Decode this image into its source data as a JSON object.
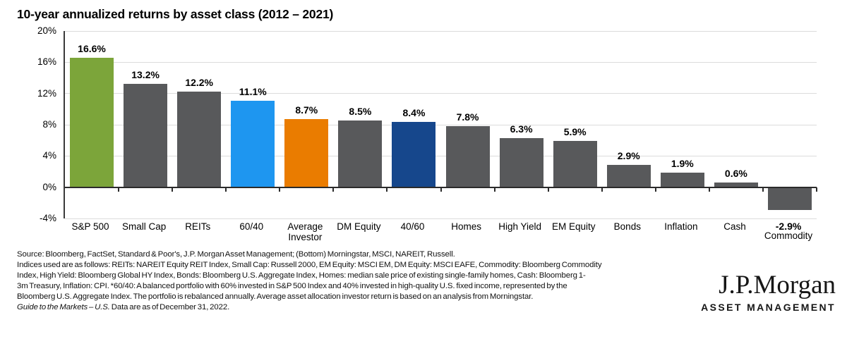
{
  "chart_data": {
    "type": "bar",
    "title": "10-year annualized returns by asset class (2012 – 2021)",
    "categories": [
      "S&P 500",
      "Small Cap",
      "REITs",
      "60/40",
      "Average Investor",
      "DM Equity",
      "40/60",
      "Homes",
      "High Yield",
      "EM Equity",
      "Bonds",
      "Inflation",
      "Cash",
      "Commodity"
    ],
    "values": [
      16.6,
      13.2,
      12.2,
      11.1,
      8.7,
      8.5,
      8.4,
      7.8,
      6.3,
      5.9,
      2.9,
      1.9,
      0.6,
      -2.9
    ],
    "value_labels": [
      "16.6%",
      "13.2%",
      "12.2%",
      "11.1%",
      "8.7%",
      "8.5%",
      "8.4%",
      "7.8%",
      "6.3%",
      "5.9%",
      "2.9%",
      "1.9%",
      "0.6%",
      "-2.9%"
    ],
    "bar_colors": [
      "#7ca53a",
      "#58595b",
      "#58595b",
      "#1e96f0",
      "#ea7c00",
      "#58595b",
      "#16478c",
      "#58595b",
      "#58595b",
      "#58595b",
      "#58595b",
      "#58595b",
      "#58595b",
      "#58595b"
    ],
    "colors": {
      "highlight_green": "#7ca53a",
      "default_gray": "#58595b",
      "bright_blue": "#1e96f0",
      "orange": "#ea7c00",
      "navy": "#16478c",
      "gridline": "#dcdcdc",
      "axis": "#2b2b2b"
    },
    "ylim": [
      -4,
      20
    ],
    "yticks": [
      20,
      16,
      12,
      8,
      4,
      0,
      -4
    ],
    "ytick_labels": [
      "20%",
      "16%",
      "12%",
      "8%",
      "4%",
      "0%",
      "-4%"
    ],
    "xlabel": "",
    "ylabel": "",
    "grid": "horizontal",
    "legend": "none"
  },
  "footnote": {
    "lines": [
      "Source: Bloomberg, FactSet, Standard & Poor's, J.P. Morgan Asset Management; (Bottom) Morningstar, MSCI, NAREIT, Russell.",
      "Indices used are as follows: REITs: NAREIT Equity REIT Index, Small Cap: Russell 2000, EM Equity: MSCI EM, DM Equity: MSCI EAFE, Commodity: Bloomberg Commodity",
      "Index, High Yield: Bloomberg Global HY Index, Bonds: Bloomberg U.S. Aggregate Index, Homes: median sale price of existing single-family homes, Cash: Bloomberg 1-",
      "3m Treasury, Inflation: CPI. *60/40: A balanced portfolio with 60% invested in S&P 500 Index and 40% invested in high-quality U.S. fixed income, represented by the",
      "Bloomberg U.S. Aggregate Index. The portfolio is rebalanced annually. Average asset allocation investor return is based on an analysis from Morningstar."
    ],
    "guide_italic": "Guide to the Markets – U.S.",
    "guide_rest": " Data are as of December 31, 2022."
  },
  "logo": {
    "name": "J.P.Morgan",
    "subtitle": "ASSET MANAGEMENT"
  }
}
